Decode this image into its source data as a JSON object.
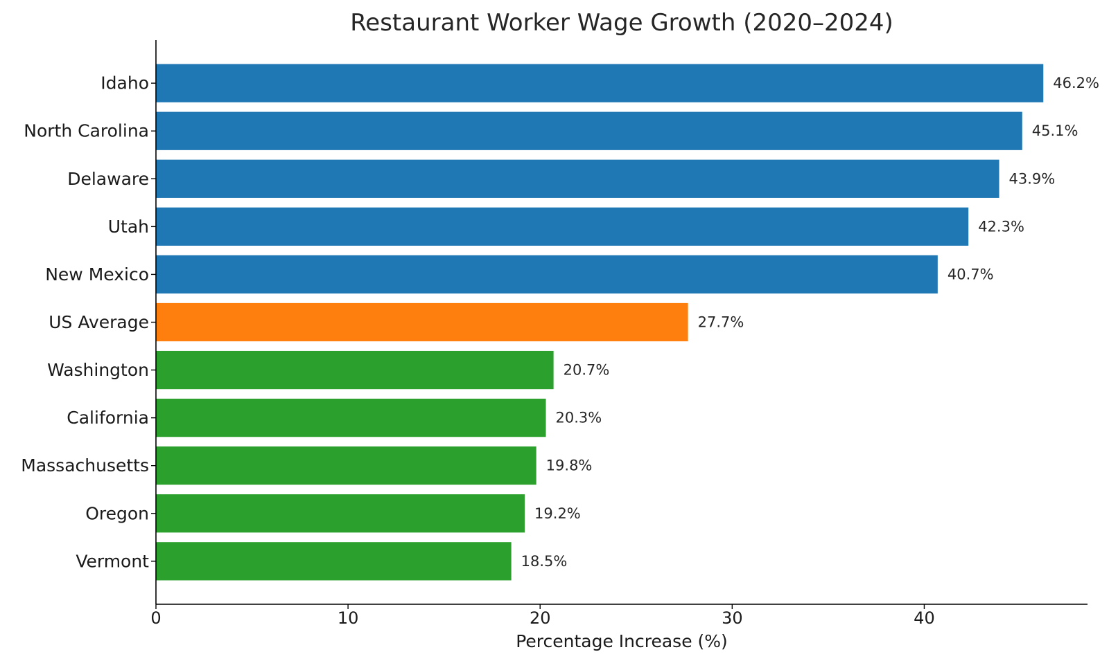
{
  "chart_data": {
    "type": "bar",
    "orientation": "horizontal",
    "title": "Restaurant Worker Wage Growth (2020–2024)",
    "xlabel": "Percentage Increase (%)",
    "ylabel": "",
    "xlim": [
      0,
      48.5
    ],
    "xticks": [
      0,
      10,
      20,
      30,
      40
    ],
    "categories": [
      "Idaho",
      "North Carolina",
      "Delaware",
      "Utah",
      "New Mexico",
      "US Average",
      "Washington",
      "California",
      "Massachusetts",
      "Oregon",
      "Vermont"
    ],
    "values": [
      46.2,
      45.1,
      43.9,
      42.3,
      40.7,
      27.7,
      20.7,
      20.3,
      19.8,
      19.2,
      18.5
    ],
    "value_labels": [
      "46.2%",
      "45.1%",
      "43.9%",
      "42.3%",
      "40.7%",
      "27.7%",
      "20.7%",
      "20.3%",
      "19.8%",
      "19.2%",
      "18.5%"
    ],
    "bar_colors": [
      "#1f77b4",
      "#1f77b4",
      "#1f77b4",
      "#1f77b4",
      "#1f77b4",
      "#ff7f0e",
      "#2ca02c",
      "#2ca02c",
      "#2ca02c",
      "#2ca02c",
      "#2ca02c"
    ],
    "grid": false,
    "legend": "none"
  }
}
